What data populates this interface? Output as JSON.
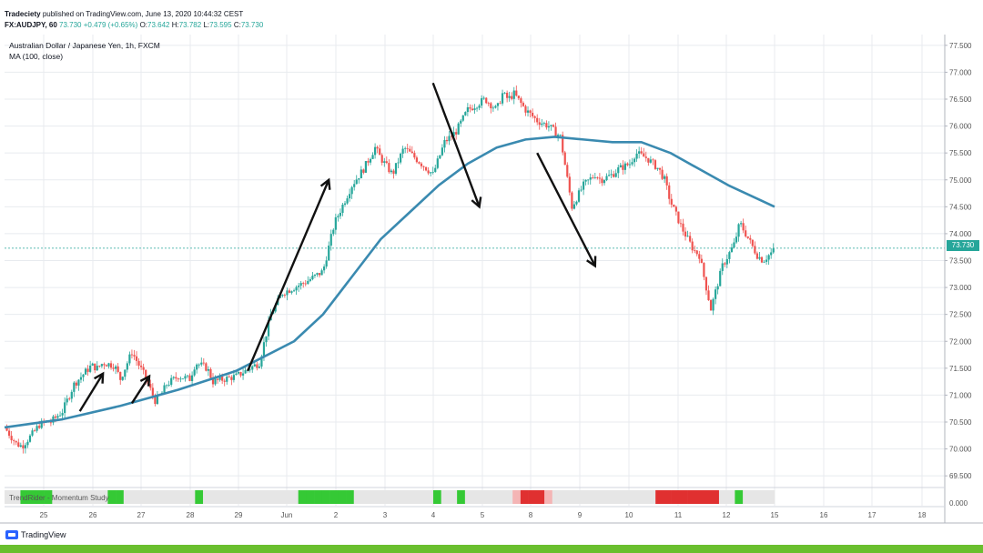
{
  "header": {
    "publisher": "Tradeciety",
    "published_text": "published on TradingView.com, June 13, 2020 10:44:32 CEST"
  },
  "ohlc_line": {
    "symbol": "FX:AUDJPY, 60",
    "last": "73.730",
    "change": "+0.479 (+0.65%)",
    "open_label": "O:",
    "open": "73.642",
    "high_label": "H:",
    "high": "73.782",
    "low_label": "L:",
    "low": "73.595",
    "close_label": "C:",
    "close": "73.730"
  },
  "legend": {
    "instrument": "Australian Dollar / Japanese Yen, 1h, FXCM",
    "ma": "MA (100, close)"
  },
  "study": {
    "label": "TrendRider - Momentum Study",
    "value": "0.000"
  },
  "price_tag": "73.730",
  "logo": {
    "text": "TradingView"
  },
  "colors": {
    "up": "#26a69a",
    "down": "#ef5350",
    "ma": "#3a8ab0",
    "grid": "#e8ebef",
    "price_line": "#26a69a",
    "study_green": "#35c935",
    "study_red": "#e03030",
    "brand_bar": "#6abf2e"
  },
  "chart_data": {
    "type": "line",
    "yaxis": {
      "ticks": [
        "77.500",
        "77.000",
        "76.500",
        "76.000",
        "75.500",
        "75.000",
        "74.500",
        "74.000",
        "73.500",
        "73.000",
        "72.500",
        "72.000",
        "71.500",
        "71.000",
        "70.500",
        "70.000",
        "69.500"
      ],
      "ylim": [
        69.3,
        77.7
      ]
    },
    "xaxis": {
      "ticks": [
        "25",
        "26",
        "27",
        "28",
        "29",
        "Jun",
        "2",
        "3",
        "4",
        "5",
        "8",
        "9",
        "10",
        "11",
        "12",
        "15",
        "16",
        "17",
        "18"
      ]
    },
    "price_line": 73.73,
    "price_path": {
      "x": [
        0,
        2,
        3,
        5,
        6,
        7,
        8,
        10,
        12,
        15,
        16,
        17,
        19,
        20,
        22,
        24,
        26,
        27,
        28,
        30,
        32,
        33,
        35,
        36,
        38,
        40,
        44,
        46,
        48,
        52,
        55,
        57,
        60,
        62,
        64,
        65,
        67,
        69,
        72,
        74,
        76,
        78,
        80,
        83,
        85,
        86,
        87,
        88,
        90,
        92,
        94,
        96,
        98,
        99,
        100,
        102,
        103,
        105,
        106,
        108,
        109,
        111,
        113,
        114,
        115,
        117,
        118,
        119,
        120,
        121,
        122,
        123,
        124,
        125,
        126,
        127,
        128,
        129,
        130,
        131,
        132,
        133
      ],
      "y": [
        70.4,
        70.1,
        70.05,
        70.3,
        70.45,
        70.5,
        70.5,
        70.7,
        71.2,
        71.55,
        71.5,
        71.6,
        71.55,
        71.3,
        71.8,
        71.4,
        70.9,
        71.0,
        71.2,
        71.35,
        71.3,
        71.6,
        71.5,
        71.25,
        71.3,
        71.35,
        71.6,
        72.5,
        72.9,
        73.1,
        73.3,
        74.2,
        74.9,
        75.2,
        75.6,
        75.4,
        75.1,
        75.6,
        75.3,
        75.1,
        75.7,
        75.9,
        76.3,
        76.5,
        76.3,
        76.6,
        76.5,
        76.6,
        76.3,
        76.1,
        76.0,
        75.8,
        74.5,
        74.7,
        74.9,
        75.1,
        75.0,
        75.1,
        75.2,
        75.3,
        75.5,
        75.4,
        75.2,
        75.0,
        74.6,
        74.1,
        73.9,
        73.7,
        73.6,
        73.1,
        72.6,
        73.0,
        73.4,
        73.6,
        73.8,
        74.2,
        74.0,
        73.8,
        73.6,
        73.5,
        73.6,
        73.7
      ]
    },
    "series": [
      {
        "x": [
          0,
          10,
          20,
          30,
          40,
          50,
          55,
          60,
          65,
          70,
          75,
          80,
          85,
          90,
          95,
          100,
          105,
          110,
          115,
          120,
          125,
          130,
          133
        ],
        "y": [
          70.4,
          70.55,
          70.8,
          71.1,
          71.45,
          72.0,
          72.5,
          73.2,
          73.9,
          74.4,
          74.9,
          75.3,
          75.6,
          75.75,
          75.8,
          75.75,
          75.7,
          75.7,
          75.5,
          75.2,
          74.9,
          74.65,
          74.5
        ]
      }
    ],
    "study_bar": [
      "gray",
      "gray",
      "green",
      "green",
      "green",
      "green",
      "gray",
      "gray",
      "gray",
      "gray",
      "gray",
      "gray",
      "gray",
      "green",
      "green",
      "gray",
      "gray",
      "gray",
      "gray",
      "gray",
      "gray",
      "gray",
      "gray",
      "gray",
      "green",
      "gray",
      "gray",
      "gray",
      "gray",
      "gray",
      "gray",
      "gray",
      "gray",
      "gray",
      "gray",
      "gray",
      "gray",
      "green",
      "green",
      "green",
      "green",
      "green",
      "green",
      "green",
      "gray",
      "gray",
      "gray",
      "gray",
      "gray",
      "gray",
      "gray",
      "gray",
      "gray",
      "gray",
      "green",
      "gray",
      "gray",
      "green",
      "gray",
      "gray",
      "gray",
      "gray",
      "gray",
      "gray",
      "pink",
      "red",
      "red",
      "red",
      "pink",
      "gray",
      "gray",
      "gray",
      "gray",
      "gray",
      "gray",
      "gray",
      "gray",
      "gray",
      "gray",
      "gray",
      "gray",
      "gray",
      "red",
      "red",
      "red",
      "red",
      "red",
      "red",
      "red",
      "red",
      "gray",
      "gray",
      "green",
      "gray",
      "gray",
      "gray",
      "gray"
    ],
    "annotations": {
      "arrows": [
        {
          "from": [
            13,
            70.7
          ],
          "to": [
            17,
            71.4
          ]
        },
        {
          "from": [
            22,
            70.85
          ],
          "to": [
            25,
            71.35
          ]
        },
        {
          "from": [
            42,
            71.45
          ],
          "to": [
            56,
            75.0
          ]
        },
        {
          "from": [
            74,
            76.8
          ],
          "to": [
            82,
            74.5
          ]
        },
        {
          "from": [
            92,
            75.5
          ],
          "to": [
            102,
            73.4
          ]
        }
      ]
    }
  }
}
